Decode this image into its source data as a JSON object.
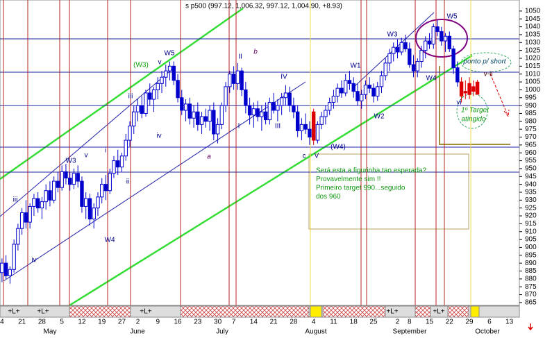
{
  "chart_data": {
    "type": "candlestick",
    "title": "s p500 (997.12, 1,006.32, 997.12, 1,004.90, +8.93)",
    "categories": [
      "4",
      null,
      null,
      null,
      null,
      "21",
      null,
      null,
      null,
      null,
      "28",
      null,
      null,
      null,
      null,
      "5",
      null,
      null,
      null,
      null,
      "12",
      null,
      null,
      null,
      null,
      "19",
      null,
      null,
      null,
      null,
      "27",
      null,
      null,
      null,
      "2",
      null,
      null,
      null,
      null,
      "9",
      null,
      null,
      null,
      null,
      "16",
      null,
      null,
      null,
      null,
      "23",
      null,
      null,
      null,
      null,
      "30",
      null,
      null,
      null,
      "7",
      null,
      null,
      null,
      null,
      "14",
      null,
      null,
      null,
      null,
      "21",
      null,
      null,
      null,
      null,
      "28",
      null,
      null,
      null,
      null,
      "4",
      null,
      null,
      null,
      null,
      "11",
      null,
      null,
      null,
      null,
      "18",
      null,
      null,
      null,
      null,
      "25",
      null,
      null,
      null,
      null,
      null,
      "2",
      null,
      null,
      "8",
      null,
      null,
      null,
      null,
      "15",
      null,
      null,
      null,
      null,
      "22",
      null,
      null,
      null,
      null,
      "29",
      null,
      null,
      null,
      null,
      "6",
      null,
      null,
      null,
      null,
      "13",
      null,
      null
    ],
    "open": [
      884,
      890,
      882,
      886,
      902,
      912,
      922,
      916,
      926,
      931,
      925,
      929,
      936,
      930,
      942,
      938,
      948,
      944,
      940,
      947,
      942,
      926,
      931,
      918,
      925,
      932,
      940,
      936,
      947,
      955,
      951,
      958,
      968,
      977,
      986,
      990,
      985,
      998,
      994,
      1000,
      1004,
      1008,
      1012,
      1015,
      1006,
      995,
      987,
      991,
      982,
      986,
      978,
      983,
      980,
      987,
      972,
      978,
      990,
      1002,
      1010,
      1004,
      1012,
      1000,
      990,
      984,
      988,
      983,
      986,
      981,
      992,
      987,
      990,
      995,
      998,
      990,
      986,
      974,
      978,
      975,
      986,
      968,
      978,
      983,
      987,
      992,
      996,
      1001,
      998,
      1006,
      1004,
      999,
      993,
      997,
      1003,
      1001,
      996,
      1002,
      1009,
      1017,
      1023,
      1027,
      1024,
      1030,
      1026,
      1016,
      1012,
      1018,
      1025,
      1031,
      1029,
      1040,
      1037,
      1031,
      1034,
      1026,
      1014,
      1005,
      998,
      1004,
      999,
      997.12,
      null,
      null,
      null,
      null,
      null,
      null,
      null,
      null,
      null,
      null
    ],
    "high": [
      893,
      895,
      888,
      905,
      915,
      925,
      930,
      928,
      934,
      935,
      932,
      940,
      942,
      945,
      948,
      952,
      953,
      948,
      950,
      952,
      945,
      935,
      934,
      928,
      935,
      944,
      946,
      950,
      958,
      962,
      960,
      972,
      980,
      990,
      994,
      996,
      1000,
      1004,
      1002,
      1008,
      1012,
      1016,
      1018,
      1018,
      1010,
      1000,
      994,
      995,
      990,
      992,
      986,
      988,
      990,
      992,
      982,
      992,
      1005,
      1012,
      1015,
      1017,
      1014,
      1005,
      995,
      992,
      993,
      990,
      992,
      995,
      998,
      994,
      998,
      1003,
      1002,
      995,
      990,
      982,
      985,
      980,
      988,
      980,
      986,
      990,
      995,
      1000,
      1004,
      1006,
      1010,
      1012,
      1008,
      1004,
      1000,
      1006,
      1008,
      1004,
      1005,
      1012,
      1020,
      1026,
      1030,
      1032,
      1033,
      1035,
      1030,
      1022,
      1020,
      1028,
      1034,
      1036,
      1042,
      1044,
      1040,
      1036,
      1037,
      1028,
      1018,
      1008,
      1006,
      1008,
      1006,
      1006.32,
      null,
      null,
      null,
      null,
      null,
      null,
      null,
      null,
      null,
      null
    ],
    "low": [
      878,
      880,
      877,
      884,
      898,
      908,
      912,
      912,
      920,
      922,
      918,
      924,
      926,
      928,
      935,
      936,
      940,
      936,
      937,
      938,
      922,
      918,
      914,
      912,
      920,
      928,
      930,
      934,
      944,
      946,
      948,
      955,
      964,
      972,
      980,
      982,
      983,
      990,
      986,
      994,
      998,
      1002,
      1006,
      1003,
      992,
      984,
      980,
      978,
      976,
      974,
      972,
      976,
      974,
      968,
      966,
      975,
      986,
      998,
      1000,
      1000,
      996,
      985,
      978,
      976,
      980,
      974,
      978,
      978,
      985,
      980,
      984,
      990,
      986,
      982,
      970,
      968,
      972,
      965,
      965,
      966,
      975,
      978,
      984,
      988,
      992,
      995,
      996,
      1000,
      995,
      990,
      988,
      994,
      998,
      992,
      993,
      998,
      1006,
      1012,
      1018,
      1020,
      1022,
      1024,
      1014,
      1008,
      1008,
      1014,
      1020,
      1026,
      1026,
      1034,
      1028,
      1024,
      1024,
      1010,
      1002,
      992,
      994,
      994,
      996,
      997.12,
      null,
      null,
      null,
      null,
      null,
      null,
      null,
      null,
      null,
      null
    ],
    "close": [
      890,
      882,
      886,
      902,
      912,
      922,
      916,
      926,
      931,
      925,
      929,
      936,
      930,
      942,
      938,
      948,
      944,
      940,
      947,
      942,
      926,
      931,
      918,
      925,
      932,
      940,
      936,
      947,
      955,
      951,
      958,
      968,
      977,
      986,
      990,
      985,
      998,
      994,
      1000,
      1004,
      1008,
      1012,
      1015,
      1006,
      995,
      987,
      991,
      982,
      986,
      978,
      983,
      980,
      987,
      972,
      978,
      990,
      1002,
      1010,
      1004,
      1012,
      1000,
      990,
      984,
      988,
      983,
      986,
      981,
      992,
      987,
      990,
      995,
      998,
      990,
      986,
      974,
      978,
      975,
      970,
      968,
      978,
      983,
      987,
      992,
      996,
      1001,
      998,
      1006,
      1004,
      999,
      993,
      997,
      1003,
      1001,
      996,
      1002,
      1009,
      1017,
      1023,
      1027,
      1024,
      1030,
      1026,
      1016,
      1012,
      1018,
      1025,
      1031,
      1029,
      1040,
      1037,
      1031,
      1034,
      1026,
      1014,
      1005,
      996,
      999,
      997,
      1002,
      1004.9,
      null,
      null,
      null,
      null,
      null,
      null,
      null,
      null,
      null,
      null
    ],
    "color": "#0000cc",
    "candle_colors": [
      null,
      null,
      null,
      null,
      null,
      null,
      null,
      null,
      null,
      null,
      null,
      null,
      null,
      null,
      null,
      null,
      null,
      null,
      null,
      null,
      null,
      null,
      null,
      null,
      null,
      null,
      null,
      null,
      null,
      null,
      null,
      null,
      null,
      null,
      null,
      null,
      null,
      null,
      null,
      null,
      null,
      null,
      null,
      null,
      null,
      null,
      null,
      null,
      null,
      null,
      null,
      null,
      null,
      null,
      null,
      null,
      null,
      null,
      null,
      null,
      null,
      null,
      null,
      null,
      null,
      null,
      null,
      null,
      null,
      null,
      null,
      null,
      null,
      null,
      null,
      null,
      null,
      null,
      "#dd0000",
      null,
      null,
      null,
      null,
      null,
      null,
      null,
      null,
      null,
      null,
      null,
      null,
      null,
      null,
      null,
      null,
      null,
      null,
      null,
      null,
      null,
      null,
      null,
      null,
      null,
      null,
      null,
      null,
      null,
      null,
      null,
      null,
      null,
      null,
      null,
      null,
      "#dd0000",
      "#dd0000",
      "#dd0000",
      "#dd0000",
      "#dd0000",
      null,
      null,
      null,
      null,
      null,
      null,
      null,
      null,
      null,
      null
    ],
    "ylim": [
      863.2,
      1057
    ],
    "yticks": [
      865,
      870,
      875,
      880,
      885,
      890,
      895,
      900,
      905,
      910,
      915,
      920,
      925,
      930,
      935,
      940,
      945,
      950,
      955,
      960,
      965,
      970,
      975,
      980,
      985,
      990,
      995,
      1000,
      1005,
      1010,
      1015,
      1020,
      1025,
      1030,
      1035,
      1040,
      1045,
      1050
    ],
    "month_labels": [
      "May",
      "June",
      "July",
      "August",
      "September",
      "October"
    ],
    "band_labels": [
      "+L+",
      "+L+",
      "+L+",
      "+L+",
      "+L+"
    ],
    "annotations": [
      "(W3)",
      "v",
      "W5",
      "iii",
      "iv",
      "i",
      "ii",
      "W3",
      "v",
      "W4",
      "iii",
      "iv",
      "II",
      "b",
      "IV",
      "a",
      "I",
      "III",
      "c",
      "V",
      "(W4)",
      "W1",
      "W2",
      "W3",
      "W5",
      "W4",
      "ponto p/ short",
      "v-ii",
      "vi",
      "1º Target",
      "atingido"
    ],
    "note_lines": [
      "Será esta a figurinha tao esperada?",
      "Provavelmente sim !!",
      "Primeiro target 990...seguido",
      "dos 960"
    ]
  }
}
